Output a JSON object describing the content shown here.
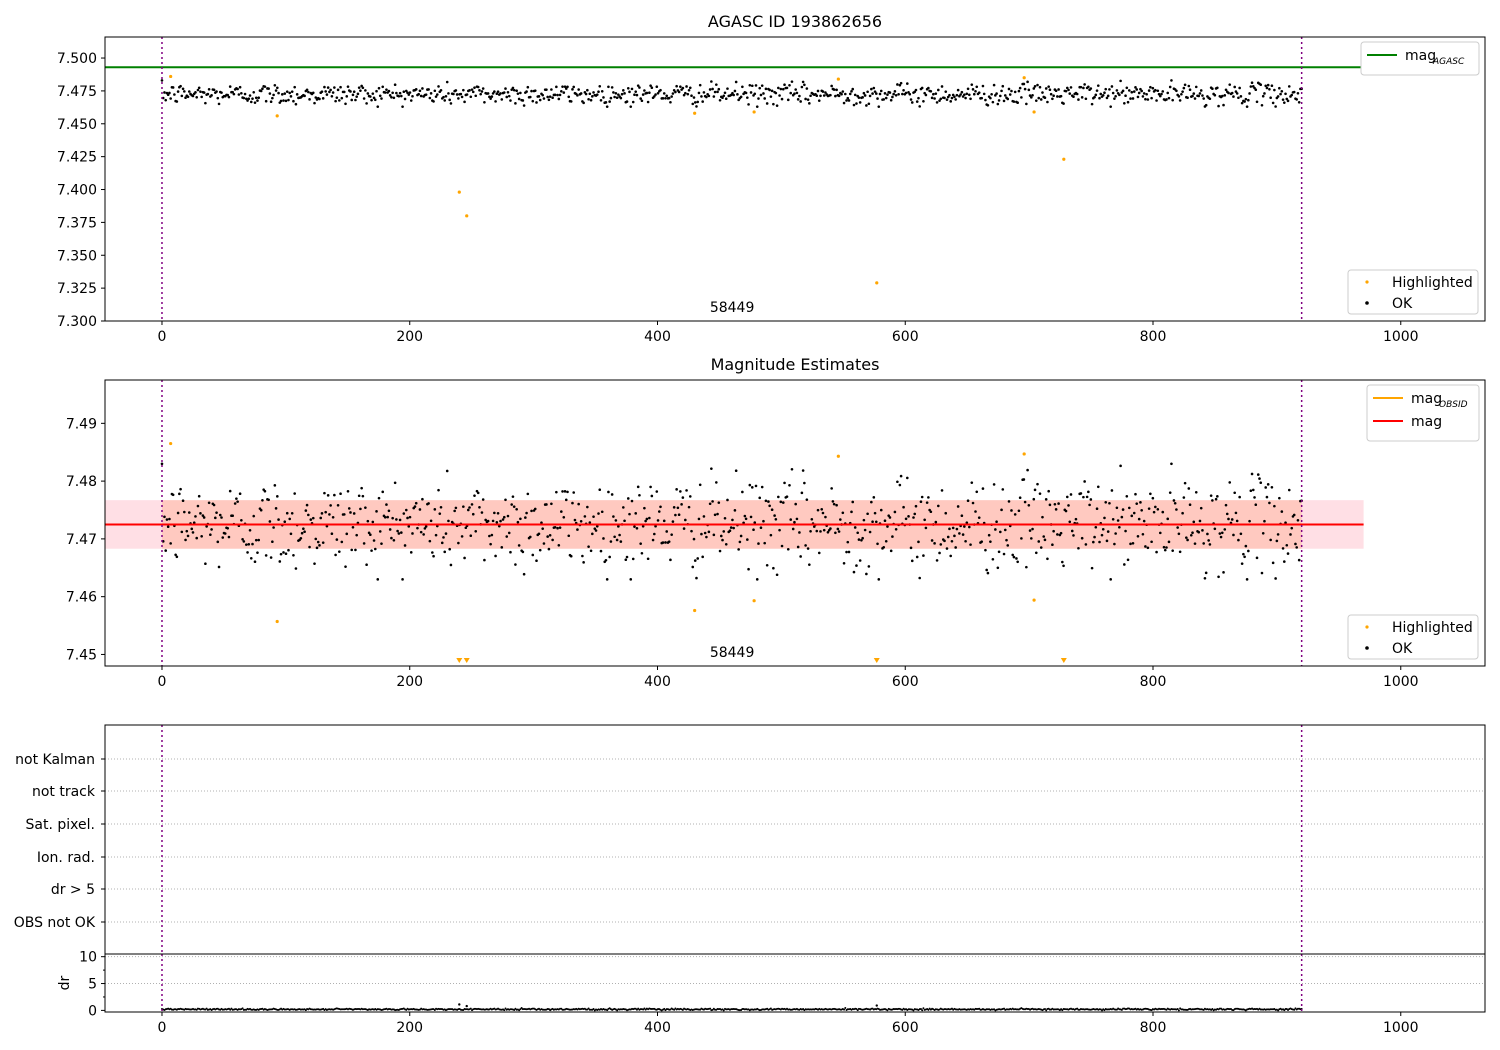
{
  "chart_data": [
    {
      "type": "scatter",
      "title": "AGASC ID 193862656",
      "xlim": [
        -46,
        1068
      ],
      "ylim": [
        7.3,
        7.516
      ],
      "x_ticks": [
        0,
        200,
        400,
        600,
        800,
        1000
      ],
      "x_tick_labels": [
        "0",
        "200",
        "400",
        "600",
        "800",
        "1000"
      ],
      "y_ticks": [
        7.3,
        7.325,
        7.35,
        7.375,
        7.4,
        7.425,
        7.45,
        7.475,
        7.5
      ],
      "y_tick_labels": [
        "7.300",
        "7.325",
        "7.350",
        "7.375",
        "7.400",
        "7.425",
        "7.450",
        "7.475",
        "7.500"
      ],
      "obsid_annotation": {
        "x": 460,
        "text": "58449"
      },
      "obsid_boundaries": [
        0,
        920
      ],
      "mag_agasc": 7.493,
      "mag_agasc_range": [
        -46,
        970
      ],
      "legend_lines": [
        {
          "name": "mag",
          "subscript": "AGASC",
          "color": "#008000"
        }
      ],
      "legend_points": [
        {
          "name": "Highlighted",
          "color": "#FFA500"
        },
        {
          "name": "OK",
          "color": "#000000"
        }
      ],
      "highlighted_points": [
        {
          "x": 7,
          "y": 7.486
        },
        {
          "x": 93,
          "y": 7.456
        },
        {
          "x": 240,
          "y": 7.398
        },
        {
          "x": 246,
          "y": 7.38
        },
        {
          "x": 430,
          "y": 7.458
        },
        {
          "x": 478,
          "y": 7.459
        },
        {
          "x": 546,
          "y": 7.484
        },
        {
          "x": 577,
          "y": 7.329
        },
        {
          "x": 696,
          "y": 7.485
        },
        {
          "x": 704,
          "y": 7.459
        },
        {
          "x": 728,
          "y": 7.423
        }
      ],
      "ok_series": {
        "x_start": 0,
        "x_end": 920,
        "n_points": 920,
        "mean": 7.4725,
        "scatter_min": 7.463,
        "scatter_max": 7.483
      }
    },
    {
      "type": "scatter",
      "title": "Magnitude Estimates",
      "xlim": [
        -46,
        1068
      ],
      "ylim": [
        7.448,
        7.4975
      ],
      "x_ticks": [
        0,
        200,
        400,
        600,
        800,
        1000
      ],
      "x_tick_labels": [
        "0",
        "200",
        "400",
        "600",
        "800",
        "1000"
      ],
      "y_ticks": [
        7.45,
        7.46,
        7.47,
        7.48,
        7.49
      ],
      "y_tick_labels": [
        "7.45",
        "7.46",
        "7.47",
        "7.48",
        "7.49"
      ],
      "obsid_annotation": {
        "x": 460,
        "text": "58449"
      },
      "obsid_boundaries": [
        0,
        920
      ],
      "mag": 7.4725,
      "mag_band": [
        7.4683,
        7.4767
      ],
      "mag_band_range": [
        -46,
        970
      ],
      "mag_obsid": {
        "value": 7.4725,
        "x_range": [
          0,
          920
        ],
        "band": [
          7.4683,
          7.4767
        ]
      },
      "legend_lines": [
        {
          "name": "mag",
          "subscript": "OBSID",
          "color": "#FFA500"
        },
        {
          "name": "mag",
          "subscript": "",
          "color": "#FF0000"
        }
      ],
      "legend_points": [
        {
          "name": "Highlighted",
          "color": "#FFA500"
        },
        {
          "name": "OK",
          "color": "#000000"
        }
      ],
      "highlighted_points": [
        {
          "x": 7,
          "y": 7.4865
        },
        {
          "x": 93,
          "y": 7.4557
        },
        {
          "x": 430,
          "y": 7.4576
        },
        {
          "x": 478,
          "y": 7.4593
        },
        {
          "x": 546,
          "y": 7.4843
        },
        {
          "x": 696,
          "y": 7.4847
        },
        {
          "x": 704,
          "y": 7.4594
        }
      ],
      "out_of_range_markers": [
        240,
        246,
        577,
        728
      ],
      "ok_series": {
        "x_start": 0,
        "x_end": 920,
        "n_points": 920,
        "mean": 7.4725,
        "scatter_min": 7.463,
        "scatter_max": 7.483
      }
    },
    {
      "type": "scatter",
      "title": "",
      "flag_rows": [
        "not Kalman",
        "not track",
        "Sat. pixel.",
        "Ion. rad.",
        "dr > 5",
        "OBS not OK"
      ],
      "obsid_boundaries": [
        0,
        920
      ]
    },
    {
      "type": "line",
      "title": "",
      "ylabel": "dr",
      "xlim": [
        -46,
        1068
      ],
      "ylim": [
        -0.3,
        10.5
      ],
      "x_ticks": [
        0,
        200,
        400,
        600,
        800,
        1000
      ],
      "x_tick_labels": [
        "0",
        "200",
        "400",
        "600",
        "800",
        "1000"
      ],
      "y_ticks": [
        0,
        5,
        10
      ],
      "y_tick_labels": [
        "0",
        "5",
        "10"
      ],
      "obsid_boundaries": [
        0,
        920
      ],
      "dr_spikes": [
        {
          "x": 240,
          "y": 1.1
        },
        {
          "x": 246,
          "y": 0.8
        },
        {
          "x": 577,
          "y": 0.9
        }
      ],
      "dr_series": {
        "x_start": 0,
        "x_end": 920,
        "n_points": 920,
        "typical": 0.2,
        "max_typical": 0.45
      }
    }
  ],
  "colors": {
    "ok": "#000000",
    "highlighted": "#FFA500",
    "agasc_line": "#008000",
    "mag_line": "#FF0000",
    "mag_obsid_line": "#FFA500",
    "mag_band": "#FFC0CB",
    "mag_obsid_band": "#FFA07A",
    "obsid_boundary": "#800080",
    "grid": "#b0b0b0"
  }
}
